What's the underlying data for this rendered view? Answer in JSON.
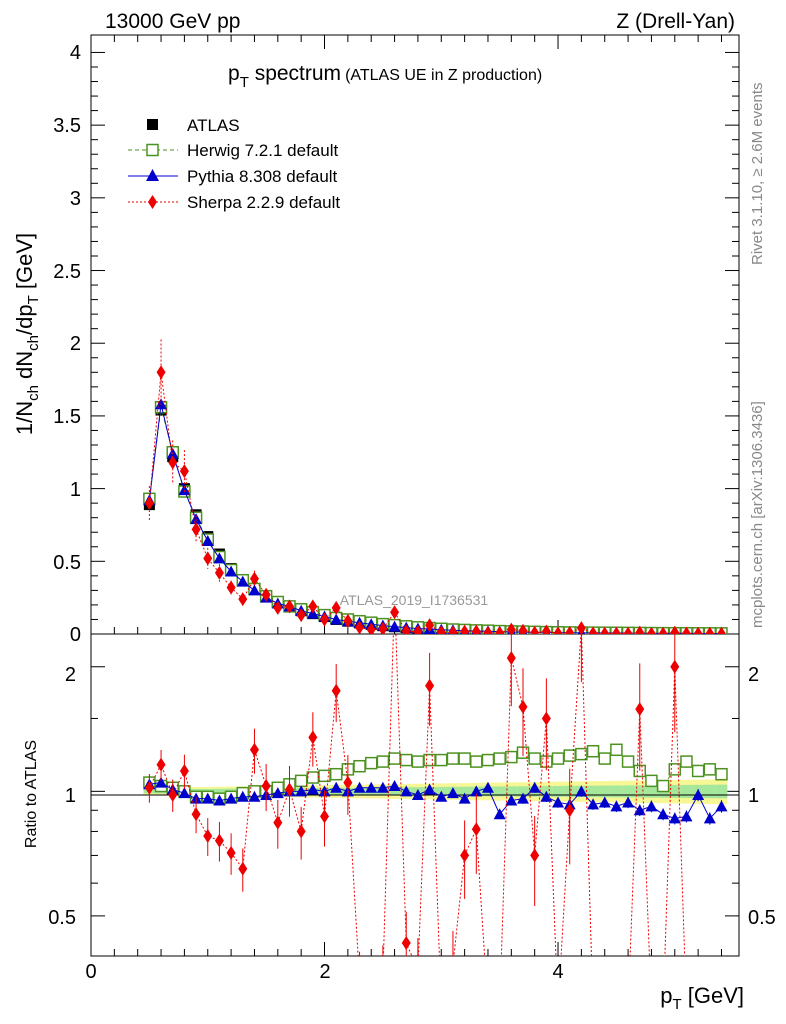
{
  "header": {
    "left": "13000 GeV pp",
    "right": "Z (Drell-Yan)"
  },
  "title": {
    "main": "p",
    "main_sub": "T",
    "main_rest": " spectrum",
    "small": "(ATLAS UE in Z production)"
  },
  "side": {
    "rivet": "Rivet 3.1.10, ≥ 2.6M events",
    "mcplots": "mcplots.cern.ch [arXiv:1306.3436]"
  },
  "watermark": "ATLAS_2019_I1736531",
  "axes": {
    "ylabel_top": "1/N_ch dN_ch/dp_T [GeV]",
    "ylabel_ratio": "Ratio to ATLAS",
    "xlabel": "p_T [GeV]",
    "x_ticks": [
      "0",
      "2",
      "4"
    ],
    "y_ticks_top": [
      "0",
      "0.5",
      "1",
      "1.5",
      "2",
      "2.5",
      "3",
      "3.5",
      "4"
    ],
    "y_ticks_ratio": [
      "0.5",
      "1",
      "2"
    ]
  },
  "legend": [
    {
      "label": "ATLAS",
      "color": "#000000",
      "marker": "filled-square"
    },
    {
      "label": "Herwig 7.2.1 default",
      "color": "#4d9221",
      "marker": "open-square",
      "line": "dashed"
    },
    {
      "label": "Pythia 8.308 default",
      "color": "#0000cc",
      "marker": "filled-triangle",
      "line": "solid"
    },
    {
      "label": "Sherpa 2.2.9 default",
      "color": "#ee0000",
      "marker": "filled-diamond",
      "line": "dotted"
    }
  ],
  "chart_data": {
    "type": "line",
    "xlim": [
      0,
      5.55
    ],
    "ylim": [
      0,
      4.12
    ],
    "ratio_ylim": [
      0.4,
      2.4
    ],
    "ratio_scale": "log",
    "x": [
      0.5,
      0.6,
      0.7,
      0.8,
      0.9,
      1.0,
      1.1,
      1.2,
      1.3,
      1.4,
      1.5,
      1.6,
      1.7,
      1.8,
      1.9,
      2.0,
      2.1,
      2.2,
      2.3,
      2.4,
      2.5,
      2.6,
      2.7,
      2.8,
      2.9,
      3.0,
      3.1,
      3.2,
      3.3,
      3.4,
      3.5,
      3.6,
      3.7,
      3.8,
      3.9,
      4.0,
      4.1,
      4.2,
      4.3,
      4.4,
      4.5,
      4.6,
      4.7,
      4.8,
      4.9,
      5.0,
      5.1,
      5.2,
      5.3,
      5.4
    ],
    "series": [
      {
        "name": "ATLAS",
        "color": "#000000",
        "values": [
          0.89,
          1.54,
          1.22,
          1.0,
          0.82,
          0.67,
          0.55,
          0.45,
          0.37,
          0.31,
          0.26,
          0.22,
          0.19,
          0.16,
          0.14,
          0.12,
          0.1,
          0.088,
          0.076,
          0.066,
          0.057,
          0.05,
          0.044,
          0.038,
          0.034,
          0.03,
          0.026,
          0.023,
          0.021,
          0.019,
          0.017,
          0.015,
          0.014,
          0.012,
          0.011,
          0.01,
          0.009,
          0.0085,
          0.008,
          0.0075,
          0.007,
          0.0065,
          0.006,
          0.0056,
          0.0052,
          0.0048,
          0.0045,
          0.0042,
          0.004,
          0.0038
        ]
      },
      {
        "name": "Herwig 7.2.1 default",
        "color": "#4d9221",
        "values": [
          0.93,
          1.56,
          1.25,
          0.98,
          0.8,
          0.65,
          0.53,
          0.44,
          0.37,
          0.31,
          0.26,
          0.22,
          0.19,
          0.17,
          0.15,
          0.13,
          0.11,
          0.1,
          0.088,
          0.078,
          0.068,
          0.061,
          0.053,
          0.046,
          0.041,
          0.036,
          0.031,
          0.028,
          0.025,
          0.023,
          0.02,
          0.018,
          0.017,
          0.015,
          0.013,
          0.012,
          0.011,
          0.01,
          0.0095,
          0.009,
          0.0085,
          0.0078,
          0.0072,
          0.0064,
          0.0058,
          0.0054,
          0.0052,
          0.0048,
          0.0046,
          0.0043
        ],
        "ratio": [
          1.05,
          1.03,
          1.02,
          1.0,
          0.97,
          0.97,
          0.96,
          0.97,
          0.99,
          1.0,
          1.0,
          1.02,
          1.04,
          1.06,
          1.08,
          1.09,
          1.1,
          1.13,
          1.15,
          1.17,
          1.18,
          1.2,
          1.19,
          1.18,
          1.19,
          1.19,
          1.2,
          1.2,
          1.18,
          1.19,
          1.2,
          1.21,
          1.24,
          1.2,
          1.18,
          1.2,
          1.22,
          1.23,
          1.25,
          1.2,
          1.26,
          1.18,
          1.12,
          1.06,
          1.03,
          1.13,
          1.18,
          1.12,
          1.13,
          1.1
        ]
      },
      {
        "name": "Pythia 8.308 default",
        "color": "#0000cc",
        "values": [
          0.92,
          1.58,
          1.24,
          0.99,
          0.79,
          0.64,
          0.52,
          0.43,
          0.36,
          0.3,
          0.25,
          0.21,
          0.19,
          0.16,
          0.14,
          0.12,
          0.1,
          0.088,
          0.077,
          0.067,
          0.058,
          0.051,
          0.044,
          0.037,
          0.034,
          0.029,
          0.026,
          0.022,
          0.021,
          0.019,
          0.016,
          0.014,
          0.013,
          0.012,
          0.011,
          0.0095,
          0.0085,
          0.0078,
          0.0075,
          0.007,
          0.0065,
          0.006,
          0.0054,
          0.0051,
          0.0047,
          0.0042,
          0.0039,
          0.0041,
          0.0035,
          0.0035
        ],
        "ratio": [
          1.04,
          1.05,
          1.01,
          0.99,
          0.96,
          0.96,
          0.95,
          0.96,
          0.97,
          0.97,
          0.98,
          0.99,
          1.0,
          1.0,
          1.01,
          1.0,
          1.02,
          1.0,
          1.02,
          1.02,
          1.02,
          1.03,
          1.0,
          0.98,
          1.01,
          0.97,
          0.99,
          0.96,
          1.0,
          1.02,
          0.88,
          0.95,
          0.96,
          1.02,
          0.97,
          0.94,
          0.93,
          1.0,
          0.93,
          0.94,
          0.92,
          0.94,
          0.9,
          0.92,
          0.88,
          0.86,
          0.87,
          0.98,
          0.86,
          0.92
        ]
      },
      {
        "name": "Sherpa 2.2.9 default",
        "color": "#ee0000",
        "values": [
          0.9,
          1.8,
          1.18,
          1.12,
          0.72,
          0.52,
          0.42,
          0.32,
          0.24,
          0.38,
          0.27,
          0.18,
          0.19,
          0.13,
          0.19,
          0.1,
          0.18,
          0.09,
          0.045,
          0.03,
          0.035,
          0.15,
          0.019,
          0.015,
          0.06,
          0.012,
          0.01,
          0.016,
          0.017,
          0.008,
          0.007,
          0.03,
          0.022,
          0.009,
          0.017,
          0.004,
          0.0075,
          0.04,
          0.004,
          0.003,
          0.003,
          0.003,
          0.0095,
          0.002,
          0.002,
          0.0095,
          0.003,
          0.002,
          0.002,
          0.002
        ],
        "ratio": [
          1.02,
          1.16,
          0.98,
          1.12,
          0.88,
          0.78,
          0.76,
          0.71,
          0.65,
          1.26,
          1.03,
          0.84,
          1.01,
          0.8,
          1.35,
          0.87,
          1.75,
          1.05,
          0.35,
          0.3,
          0.36,
          3.0,
          0.43,
          0.37,
          1.8,
          0.3,
          0.38,
          0.7,
          0.81,
          0.3,
          0.3,
          2.1,
          1.6,
          0.7,
          1.5,
          0.3,
          0.9,
          2.5,
          0.3,
          0.3,
          0.3,
          0.3,
          1.58,
          0.3,
          0.3,
          2.0,
          0.3,
          0.3,
          0.3,
          0.3
        ]
      }
    ]
  }
}
